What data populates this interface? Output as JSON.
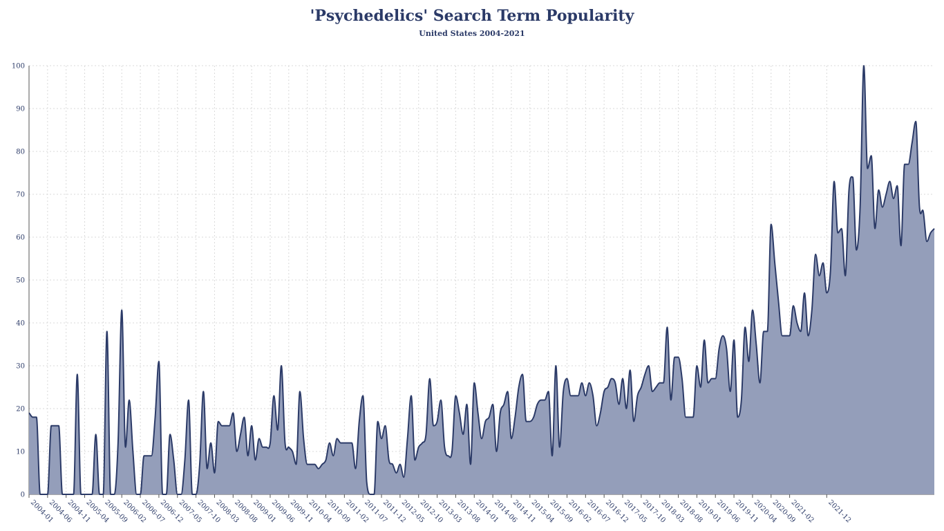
{
  "chart_data": {
    "type": "area",
    "title": "'Psychedelics' Search Term Popularity",
    "subtitle": "United States 2004-2021",
    "xlabel": "",
    "ylabel": "",
    "ylim": [
      0,
      100
    ],
    "yticks": [
      0,
      10,
      20,
      30,
      40,
      50,
      60,
      70,
      80,
      90,
      100
    ],
    "grid": true,
    "legend": "none",
    "colors": {
      "line": "#2b3a67",
      "fill": "#949eba",
      "grid": "#d9d9d9",
      "text": "#2b3a67"
    },
    "xtick_labels": [
      "2004-01",
      "2004-06",
      "2004-11",
      "2005-04",
      "2005-09",
      "2006-02",
      "2006-07",
      "2006-12",
      "2007-05",
      "2007-10",
      "2008-03",
      "2008-08",
      "2009-01",
      "2009-06",
      "2009-11",
      "2010-04",
      "2010-09",
      "2011-02",
      "2011-07",
      "2011-12",
      "2012-05",
      "2012-10",
      "2013-03",
      "2013-08",
      "2014-01",
      "2014-06",
      "2014-11",
      "2015-04",
      "2015-09",
      "2016-02",
      "2016-07",
      "2016-12",
      "2017-05",
      "2017-10",
      "2018-03",
      "2018-08",
      "2019-01",
      "2019-06",
      "2019-11",
      "2020-04",
      "2020-09",
      "2021-02",
      "2021-12"
    ],
    "start": "2004-01",
    "values": [
      19,
      18,
      18,
      0,
      0,
      0,
      16,
      16,
      16,
      0,
      0,
      0,
      0,
      28,
      0,
      0,
      0,
      0,
      14,
      0,
      0,
      38,
      0,
      0,
      12,
      43,
      11,
      22,
      10,
      0,
      0,
      9,
      9,
      9,
      18,
      31,
      0,
      0,
      14,
      8,
      0,
      0,
      8,
      22,
      0,
      0,
      7,
      24,
      6,
      12,
      5,
      17,
      16,
      16,
      16,
      19,
      10,
      14,
      18,
      9,
      16,
      8,
      13,
      11,
      11,
      12,
      23,
      15,
      30,
      12,
      11,
      10,
      7,
      24,
      13,
      7,
      7,
      7,
      6,
      7,
      8,
      12,
      9,
      13,
      12,
      12,
      12,
      12,
      6,
      17,
      23,
      3,
      0,
      0,
      17,
      13,
      16,
      8,
      7,
      5,
      7,
      4,
      13,
      23,
      8,
      11,
      12,
      14,
      27,
      16,
      17,
      22,
      11,
      9,
      10,
      23,
      19,
      14,
      21,
      7,
      26,
      19,
      13,
      17,
      18,
      21,
      10,
      19,
      21,
      24,
      13,
      18,
      25,
      28,
      17,
      17,
      18,
      21,
      22,
      22,
      24,
      9,
      30,
      11,
      24,
      27,
      23,
      23,
      23,
      26,
      23,
      26,
      23,
      16,
      19,
      24,
      25,
      27,
      26,
      21,
      27,
      20,
      29,
      17,
      23,
      25,
      28,
      30,
      24,
      25,
      26,
      26,
      39,
      22,
      32,
      32,
      27,
      18,
      18,
      18,
      30,
      25,
      36,
      26,
      27,
      27,
      34,
      37,
      34,
      24,
      36,
      18,
      22,
      39,
      31,
      43,
      35,
      26,
      38,
      38,
      63,
      54,
      45,
      37,
      37,
      37,
      44,
      40,
      38,
      47,
      37,
      43,
      56,
      51,
      54,
      47,
      52,
      73,
      61,
      62,
      51,
      71,
      74,
      57,
      67,
      100,
      76,
      79,
      62,
      71,
      67,
      70,
      73,
      69,
      72,
      58,
      77,
      77,
      82,
      87,
      67,
      66,
      59,
      61,
      62
    ]
  }
}
